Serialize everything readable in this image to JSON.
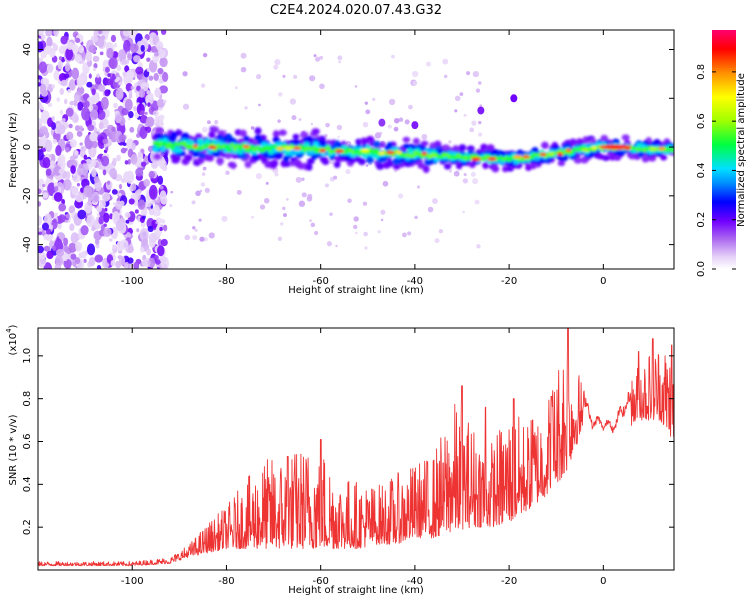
{
  "title": "C2E4.2024.020.07.43.G32",
  "chart_data": [
    {
      "type": "heatmap",
      "xlabel": "Height of straight line (km)",
      "ylabel": "Frequency (Hz)",
      "xlim": [
        -120,
        15
      ],
      "ylim": [
        -50,
        48
      ],
      "x_ticks": [
        -100,
        -80,
        -60,
        -40,
        -20,
        0
      ],
      "y_ticks": [
        -40,
        -20,
        0,
        20,
        40
      ],
      "grid": false,
      "colorbar": {
        "label": "Normalized spectral amplitude",
        "range": [
          0,
          0.97
        ],
        "ticks": [
          0.0,
          0.2,
          0.4,
          0.6,
          0.8
        ],
        "colormap": [
          "#ffffff",
          "#e8d4f8",
          "#c89af0",
          "#9b30ff",
          "#6a00ff",
          "#0000ff",
          "#00c8ff",
          "#00ff80",
          "#80ff00",
          "#ffff00",
          "#ff8000",
          "#ff0000",
          "#ff0080"
        ]
      },
      "ridge": {
        "description_points_x": [
          -95,
          -80,
          -60,
          -40,
          -20,
          0,
          14
        ],
        "description_points_y": [
          1,
          0,
          -1,
          -3,
          -5,
          0,
          -1
        ]
      }
    },
    {
      "type": "line",
      "xlabel": "Height of straight line (km)",
      "ylabel": "SNR (10 * v/v)",
      "y_exponent_label": "(x10",
      "y_exponent": "4",
      "y_exponent_close": ")",
      "xlim": [
        -120,
        15
      ],
      "ylim": [
        0,
        1.13
      ],
      "x_ticks": [
        -100,
        -80,
        -60,
        -40,
        -20,
        0
      ],
      "y_ticks": [
        0.2,
        0.4,
        0.6,
        0.8,
        1.0
      ],
      "line_color": "#ee3333",
      "envelope": {
        "x": [
          -120,
          -100,
          -92,
          -88,
          -84,
          -80,
          -76,
          -72,
          -68,
          -64,
          -60,
          -56,
          -52,
          -48,
          -44,
          -40,
          -36,
          -32,
          -28,
          -24,
          -20,
          -16,
          -12,
          -8,
          -4,
          0,
          4,
          8,
          12,
          15
        ],
        "base": [
          0.02,
          0.02,
          0.03,
          0.06,
          0.08,
          0.1,
          0.1,
          0.1,
          0.1,
          0.1,
          0.1,
          0.1,
          0.1,
          0.12,
          0.12,
          0.15,
          0.15,
          0.18,
          0.2,
          0.2,
          0.22,
          0.28,
          0.35,
          0.45,
          0.68,
          0.62,
          0.65,
          0.7,
          0.7,
          0.6
        ],
        "peak": [
          0.04,
          0.04,
          0.06,
          0.12,
          0.22,
          0.3,
          0.42,
          0.52,
          0.54,
          0.58,
          0.6,
          0.45,
          0.42,
          0.4,
          0.45,
          0.5,
          0.55,
          0.8,
          0.7,
          0.6,
          0.75,
          0.7,
          0.8,
          1.12,
          0.85,
          0.7,
          0.8,
          1.0,
          1.08,
          1.05
        ]
      },
      "spikes": [
        {
          "x": -67,
          "y": 0.53
        },
        {
          "x": -60,
          "y": 0.61
        },
        {
          "x": -34,
          "y": 0.5
        },
        {
          "x": -30,
          "y": 0.86
        },
        {
          "x": -25,
          "y": 0.76
        },
        {
          "x": -19,
          "y": 0.8
        },
        {
          "x": -15,
          "y": 0.7
        },
        {
          "x": -11,
          "y": 0.81
        },
        {
          "x": -7.5,
          "y": 1.13
        },
        {
          "x": 7.5,
          "y": 1.02
        },
        {
          "x": 10.5,
          "y": 1.08
        },
        {
          "x": 14.5,
          "y": 1.05
        }
      ]
    }
  ]
}
